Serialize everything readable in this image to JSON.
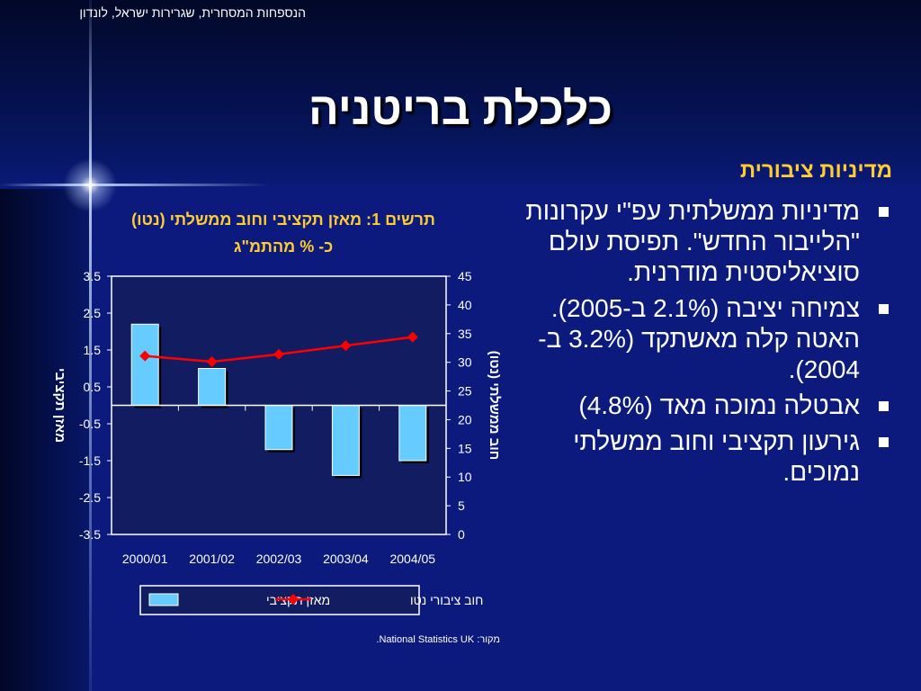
{
  "header": {
    "organization": "הנספחות המסחרית, שגרירות ישראל, לונדון",
    "title": "כלכלת בריטניה",
    "subtitle": "מדיניות ציבורית"
  },
  "bullets": [
    "מדיניות ממשלתית עפ\"י עקרונות \"הלייבור החדש\". תפיסת עולם סוציאליסטית מודרנית.",
    "צמיחה יציבה (2.1% ב-2005). האטה קלה מאשתקד (3.2% ב- 2004).",
    "אבטלה נמוכה מאד (4.8%)",
    "גירעון תקציבי וחוב ממשלתי נמוכים."
  ],
  "chart_data": {
    "type": "bar",
    "title": "תרשים 1: מאזן תקציבי וחוב ממשלתי (נטו)",
    "subtitle": "כ- % מהתמ\"ג",
    "categories": [
      "2000/01",
      "2001/02",
      "2002/03",
      "2003/04",
      "2004/05"
    ],
    "series": [
      {
        "name": "מאזן תקציבי",
        "type": "bar",
        "axis": "left",
        "values": [
          2.2,
          1.0,
          -1.2,
          -1.9,
          -1.5
        ],
        "color": "#66ccff"
      },
      {
        "name": "חוב ציבורי נטו",
        "type": "line",
        "axis": "right",
        "values": [
          31.1,
          30.1,
          31.4,
          32.9,
          34.4
        ],
        "color": "#ff0000"
      }
    ],
    "left_axis": {
      "label": "מאזן תקציבי",
      "ylim": [
        -3.5,
        3.5
      ],
      "ticks": [
        "3.5",
        "2.5",
        "1.5",
        "0.5",
        "-0.5",
        "-1.5",
        "-2.5",
        "-3.5"
      ]
    },
    "right_axis": {
      "label": "חוב ממשלתי (נטו)",
      "ylim": [
        0,
        45
      ],
      "ticks": [
        "45",
        "40",
        "35",
        "30",
        "25",
        "20",
        "15",
        "10",
        "5",
        "0"
      ]
    },
    "legend": "bottom",
    "source": "מקור: National Statistics UK."
  },
  "colors": {
    "background": "#0b1a7c",
    "accent": "#ffcc33",
    "text": "#ffffff",
    "plot_area": "#121c60"
  }
}
